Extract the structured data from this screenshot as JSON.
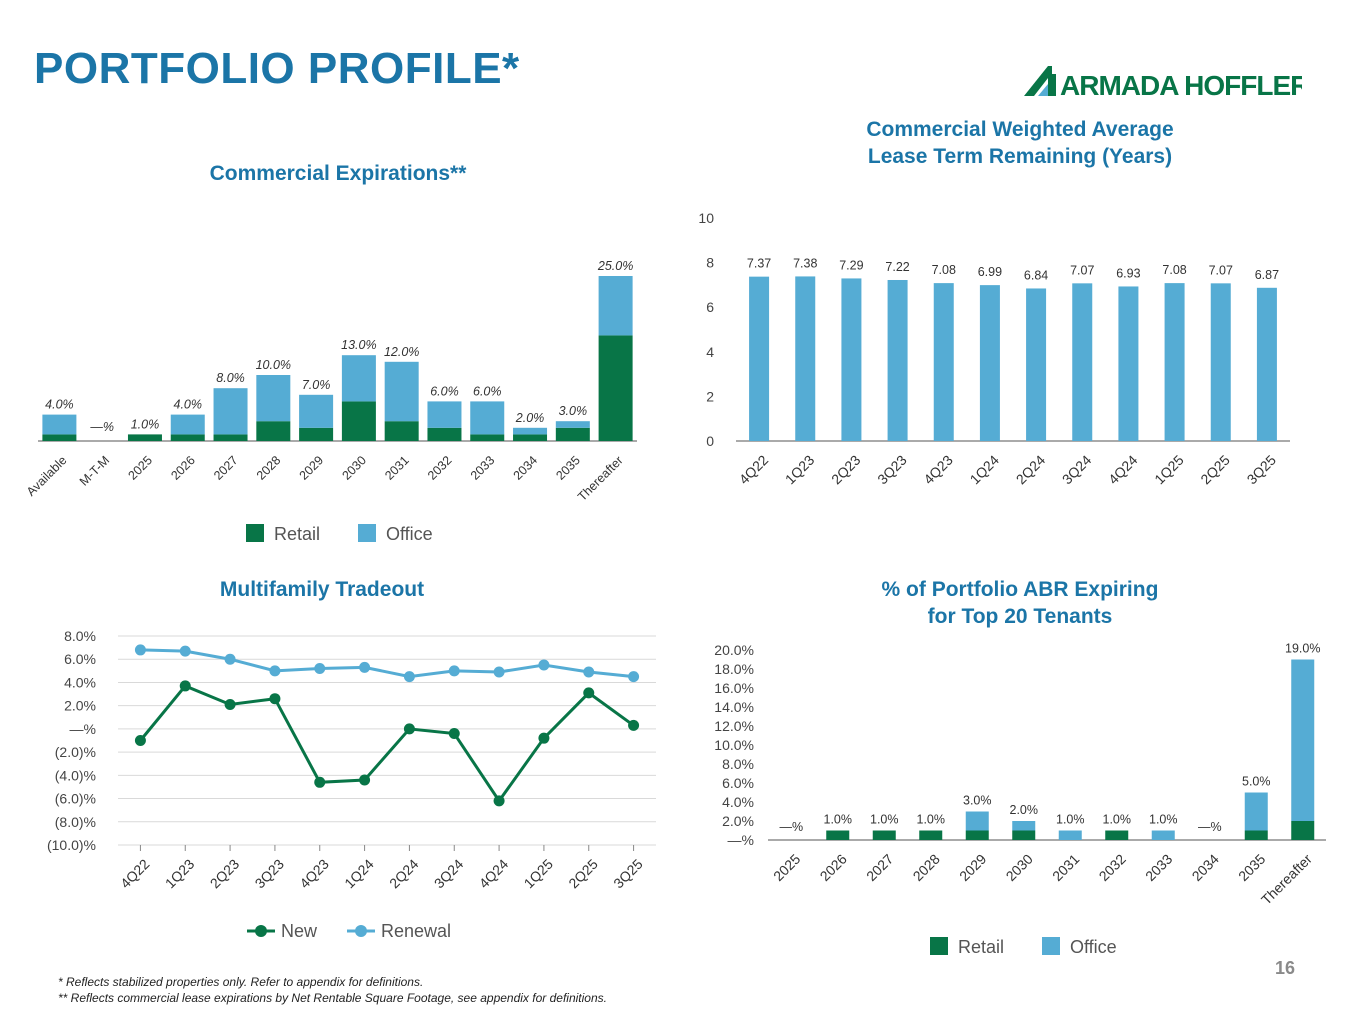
{
  "page": {
    "title": "PORTFOLIO PROFILE*",
    "logo_text": "ARMADA HOFFLER",
    "page_number": "16",
    "footnotes": [
      "*    Reflects stabilized properties only. Refer to appendix for definitions.",
      "**  Reflects commercial lease expirations by Net Rentable Square Footage, see appendix for definitions."
    ]
  },
  "colors": {
    "title": "#1b75a7",
    "retail": "#087547",
    "office": "#55acd4",
    "axis": "#666666",
    "grid": "#d9d9d9",
    "logo": "#087547"
  },
  "chart_data": [
    {
      "id": "commercial-expirations",
      "type": "bar",
      "stacked": true,
      "title": "Commercial Expirations**",
      "categories": [
        "Available",
        "M-T-M",
        "2025",
        "2026",
        "2027",
        "2028",
        "2029",
        "2030",
        "2031",
        "2032",
        "2033",
        "2034",
        "2035",
        "Thereafter"
      ],
      "series": [
        {
          "name": "Retail",
          "values": [
            1,
            0,
            1,
            1,
            1,
            3,
            2,
            6,
            3,
            2,
            1,
            1,
            2,
            16
          ]
        },
        {
          "name": "Office",
          "values": [
            3,
            0,
            0,
            3,
            7,
            7,
            5,
            7,
            9,
            4,
            5,
            1,
            1,
            9
          ]
        }
      ],
      "total_labels": [
        "4.0%",
        "—%",
        "1.0%",
        "4.0%",
        "8.0%",
        "10.0%",
        "7.0%",
        "13.0%",
        "12.0%",
        "6.0%",
        "6.0%",
        "2.0%",
        "3.0%",
        "25.0%"
      ],
      "ylim": [
        0,
        25
      ],
      "legend": "bottom"
    },
    {
      "id": "walt",
      "type": "bar",
      "title_lines": [
        "Commercial Weighted Average",
        "Lease Term Remaining (Years)"
      ],
      "categories": [
        "4Q22",
        "1Q23",
        "2Q23",
        "3Q23",
        "4Q23",
        "1Q24",
        "2Q24",
        "3Q24",
        "4Q24",
        "1Q25",
        "2Q25",
        "3Q25"
      ],
      "series": [
        {
          "name": "Office",
          "values": [
            7.37,
            7.38,
            7.29,
            7.22,
            7.08,
            6.99,
            6.84,
            7.07,
            6.93,
            7.08,
            7.07,
            6.87
          ]
        }
      ],
      "value_labels": [
        "7.37",
        "7.38",
        "7.29",
        "7.22",
        "7.08",
        "6.99",
        "6.84",
        "7.07",
        "6.93",
        "7.08",
        "7.07",
        "6.87"
      ],
      "yticks": [
        "0",
        "2",
        "4",
        "6",
        "8",
        "10"
      ],
      "ylim": [
        0,
        10
      ]
    },
    {
      "id": "multifamily-tradeout",
      "type": "line",
      "title": "Multifamily Tradeout",
      "categories": [
        "4Q22",
        "1Q23",
        "2Q23",
        "3Q23",
        "4Q23",
        "1Q24",
        "2Q24",
        "3Q24",
        "4Q24",
        "1Q25",
        "2Q25",
        "3Q25"
      ],
      "series": [
        {
          "name": "New",
          "values": [
            -1.0,
            3.7,
            2.1,
            2.6,
            -4.6,
            -4.4,
            0.0,
            -0.4,
            -6.2,
            -0.8,
            3.1,
            0.3
          ]
        },
        {
          "name": "Renewal",
          "values": [
            6.8,
            6.7,
            6.0,
            5.0,
            5.2,
            5.3,
            4.5,
            5.0,
            4.9,
            5.5,
            4.9,
            4.5
          ]
        }
      ],
      "yticks": [
        "8.0%",
        "6.0%",
        "4.0%",
        "2.0%",
        "—%",
        "(2.0)%",
        "(4.0)%",
        "(6.0)%",
        "(8.0)%",
        "(10.0)%"
      ],
      "ylim": [
        -10,
        8
      ],
      "legend": "bottom"
    },
    {
      "id": "top20-abr",
      "type": "bar",
      "stacked": true,
      "title_lines": [
        "% of Portfolio ABR Expiring",
        "for Top 20 Tenants"
      ],
      "categories": [
        "2025",
        "2026",
        "2027",
        "2028",
        "2029",
        "2030",
        "2031",
        "2032",
        "2033",
        "2034",
        "2035",
        "Thereafter"
      ],
      "series": [
        {
          "name": "Retail",
          "values": [
            0,
            1,
            1,
            1,
            1,
            1,
            0,
            1,
            0,
            0,
            1,
            2
          ]
        },
        {
          "name": "Office",
          "values": [
            0,
            0,
            0,
            0,
            2,
            1,
            1,
            0,
            1,
            0,
            4,
            17
          ]
        }
      ],
      "total_labels": [
        "—%",
        "1.0%",
        "1.0%",
        "1.0%",
        "3.0%",
        "2.0%",
        "1.0%",
        "1.0%",
        "1.0%",
        "—%",
        "5.0%",
        "19.0%"
      ],
      "yticks": [
        "20.0%",
        "18.0%",
        "16.0%",
        "14.0%",
        "12.0%",
        "10.0%",
        "8.0%",
        "6.0%",
        "4.0%",
        "2.0%",
        "—%"
      ],
      "ylim": [
        0,
        20
      ],
      "legend": "bottom"
    }
  ]
}
